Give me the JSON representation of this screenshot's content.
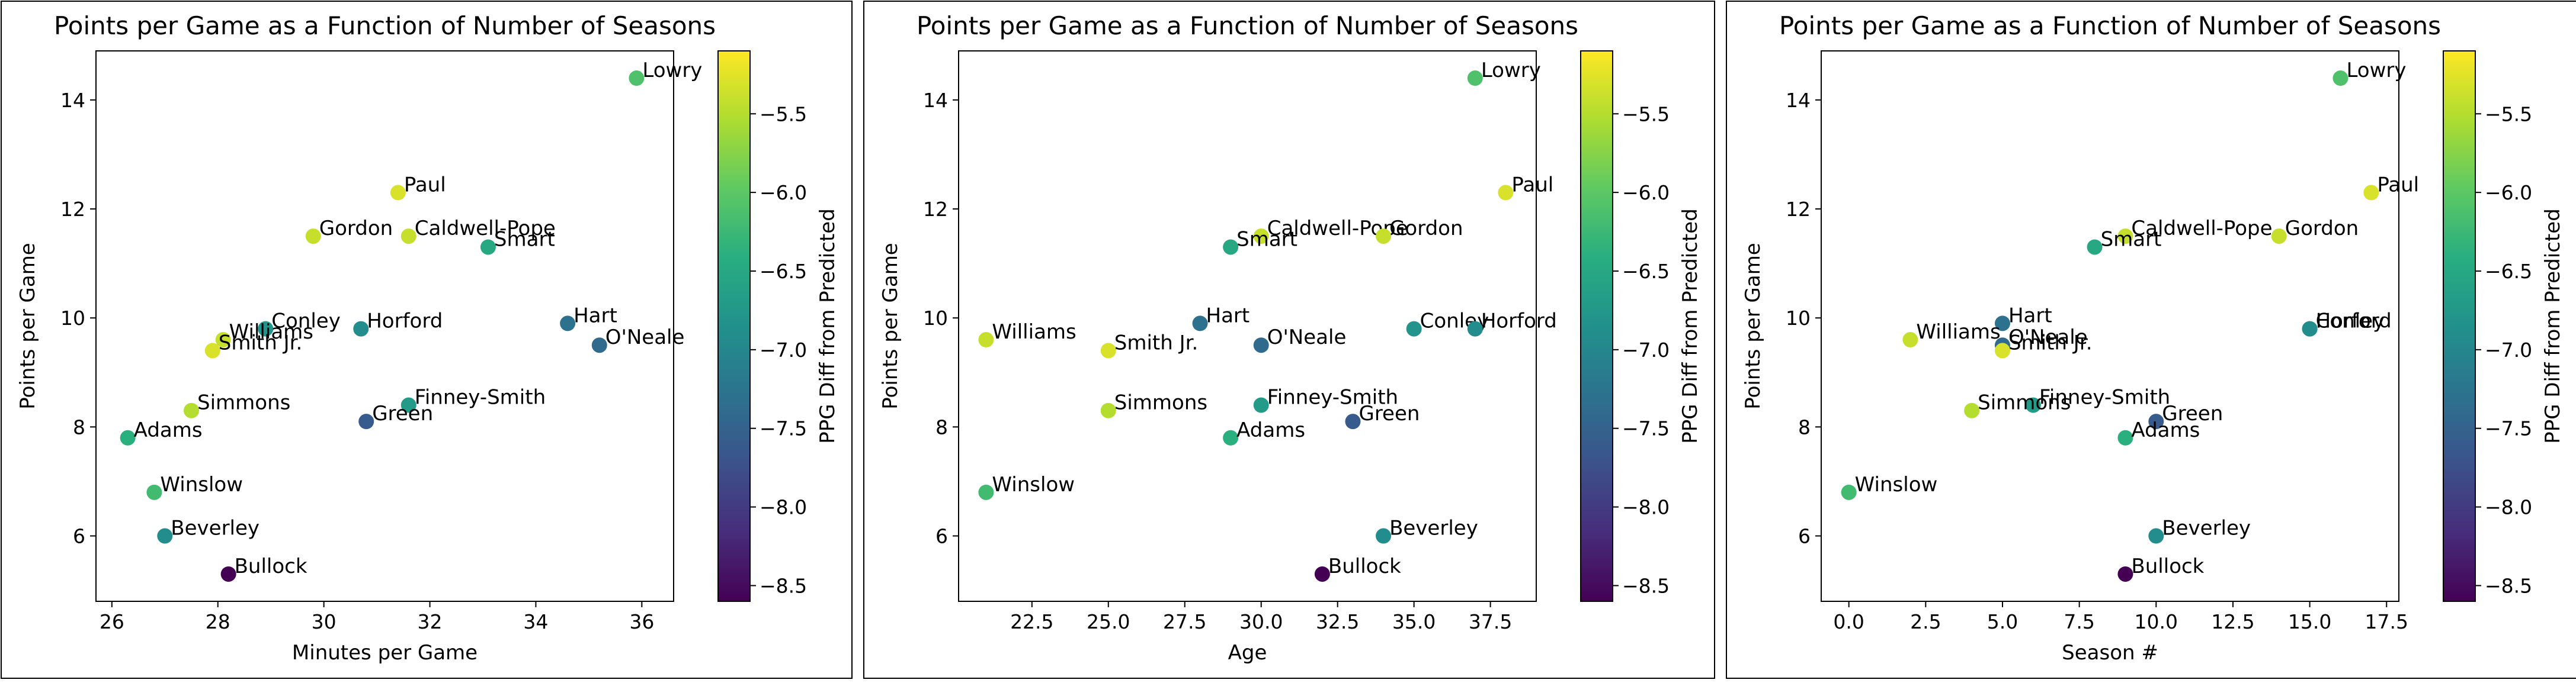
{
  "colorbar": {
    "label": "PPG Diff from Predicted",
    "range": [
      -8.6,
      -5.1
    ],
    "ticks": [
      -8.5,
      -8.0,
      -7.5,
      -7.0,
      -6.5,
      -6.0,
      -5.5
    ],
    "tick_labels": [
      "−8.5",
      "−8.0",
      "−7.5",
      "−7.0",
      "−6.5",
      "−6.0",
      "−5.5"
    ],
    "colormap": "viridis"
  },
  "chart_data": [
    {
      "type": "scatter",
      "title": "Points per Game as a Function of Number of Seasons",
      "xlabel": "Minutes per Game",
      "ylabel": "Points per Game",
      "xlim": [
        25.7,
        36.6
      ],
      "ylim": [
        4.8,
        14.9
      ],
      "xticks": [
        26,
        28,
        30,
        32,
        34,
        36
      ],
      "xtick_labels": [
        "26",
        "28",
        "30",
        "32",
        "34",
        "36"
      ],
      "yticks": [
        6,
        8,
        10,
        12,
        14
      ],
      "ytick_labels": [
        "6",
        "8",
        "10",
        "12",
        "14"
      ],
      "colorbar_label": "PPG Diff from Predicted",
      "points": [
        {
          "label": "Lowry",
          "x": 35.9,
          "y": 14.4,
          "c": -6.1
        },
        {
          "label": "Paul",
          "x": 31.4,
          "y": 12.3,
          "c": -5.3
        },
        {
          "label": "Gordon",
          "x": 29.8,
          "y": 11.5,
          "c": -5.4
        },
        {
          "label": "Caldwell-Pope",
          "x": 31.6,
          "y": 11.5,
          "c": -5.4
        },
        {
          "label": "Smart",
          "x": 33.1,
          "y": 11.3,
          "c": -6.5
        },
        {
          "label": "Hart",
          "x": 34.6,
          "y": 9.9,
          "c": -7.3
        },
        {
          "label": "O'Neale",
          "x": 35.2,
          "y": 9.5,
          "c": -7.4
        },
        {
          "label": "Conley",
          "x": 28.9,
          "y": 9.8,
          "c": -6.8
        },
        {
          "label": "Horford",
          "x": 30.7,
          "y": 9.8,
          "c": -6.9
        },
        {
          "label": "Williams",
          "x": 28.1,
          "y": 9.6,
          "c": -5.4
        },
        {
          "label": "Smith Jr.",
          "x": 27.9,
          "y": 9.4,
          "c": -5.3
        },
        {
          "label": "Simmons",
          "x": 27.5,
          "y": 8.3,
          "c": -5.5
        },
        {
          "label": "Finney-Smith",
          "x": 31.6,
          "y": 8.4,
          "c": -6.7
        },
        {
          "label": "Green",
          "x": 30.8,
          "y": 8.1,
          "c": -7.6
        },
        {
          "label": "Adams",
          "x": 26.3,
          "y": 7.8,
          "c": -6.4
        },
        {
          "label": "Winslow",
          "x": 26.8,
          "y": 6.8,
          "c": -6.2
        },
        {
          "label": "Beverley",
          "x": 27.0,
          "y": 6.0,
          "c": -6.9
        },
        {
          "label": "Bullock",
          "x": 28.2,
          "y": 5.3,
          "c": -8.6
        }
      ]
    },
    {
      "type": "scatter",
      "title": "Points per Game as a Function of Number of Seasons",
      "xlabel": "Age",
      "ylabel": "Points per Game",
      "xlim": [
        20.1,
        39.0
      ],
      "ylim": [
        4.8,
        14.9
      ],
      "xticks": [
        22.5,
        25.0,
        27.5,
        30.0,
        32.5,
        35.0,
        37.5
      ],
      "xtick_labels": [
        "22.5",
        "25.0",
        "27.5",
        "30.0",
        "32.5",
        "35.0",
        "37.5"
      ],
      "yticks": [
        6,
        8,
        10,
        12,
        14
      ],
      "ytick_labels": [
        "6",
        "8",
        "10",
        "12",
        "14"
      ],
      "colorbar_label": "PPG Diff from Predicted",
      "points": [
        {
          "label": "Lowry",
          "x": 37,
          "y": 14.4,
          "c": -6.1
        },
        {
          "label": "Paul",
          "x": 38,
          "y": 12.3,
          "c": -5.3
        },
        {
          "label": "Caldwell-Pope",
          "x": 30,
          "y": 11.5,
          "c": -5.4
        },
        {
          "label": "Gordon",
          "x": 34,
          "y": 11.5,
          "c": -5.4
        },
        {
          "label": "Smart",
          "x": 29,
          "y": 11.3,
          "c": -6.5
        },
        {
          "label": "Hart",
          "x": 28,
          "y": 9.9,
          "c": -7.3
        },
        {
          "label": "Conley",
          "x": 35,
          "y": 9.8,
          "c": -6.8
        },
        {
          "label": "Horford",
          "x": 37,
          "y": 9.8,
          "c": -6.9
        },
        {
          "label": "Williams",
          "x": 21,
          "y": 9.6,
          "c": -5.4
        },
        {
          "label": "O'Neale",
          "x": 30,
          "y": 9.5,
          "c": -7.4
        },
        {
          "label": "Smith Jr.",
          "x": 25,
          "y": 9.4,
          "c": -5.3
        },
        {
          "label": "Finney-Smith",
          "x": 30,
          "y": 8.4,
          "c": -6.7
        },
        {
          "label": "Simmons",
          "x": 25,
          "y": 8.3,
          "c": -5.5
        },
        {
          "label": "Green",
          "x": 33,
          "y": 8.1,
          "c": -7.6
        },
        {
          "label": "Adams",
          "x": 29,
          "y": 7.8,
          "c": -6.4
        },
        {
          "label": "Winslow",
          "x": 21,
          "y": 6.8,
          "c": -6.2
        },
        {
          "label": "Beverley",
          "x": 34,
          "y": 6.0,
          "c": -6.9
        },
        {
          "label": "Bullock",
          "x": 32,
          "y": 5.3,
          "c": -8.6
        }
      ]
    },
    {
      "type": "scatter",
      "title": "Points per Game as a Function of Number of Seasons",
      "xlabel": "Season #",
      "ylabel": "Points per Game",
      "xlim": [
        -0.9,
        17.9
      ],
      "ylim": [
        4.8,
        14.9
      ],
      "xticks": [
        0.0,
        2.5,
        5.0,
        7.5,
        10.0,
        12.5,
        15.0,
        17.5
      ],
      "xtick_labels": [
        "0.0",
        "2.5",
        "5.0",
        "7.5",
        "10.0",
        "12.5",
        "15.0",
        "17.5"
      ],
      "yticks": [
        6,
        8,
        10,
        12,
        14
      ],
      "ytick_labels": [
        "6",
        "8",
        "10",
        "12",
        "14"
      ],
      "colorbar_label": "PPG Diff from Predicted",
      "points": [
        {
          "label": "Lowry",
          "x": 16,
          "y": 14.4,
          "c": -6.1
        },
        {
          "label": "Paul",
          "x": 17,
          "y": 12.3,
          "c": -5.3
        },
        {
          "label": "Caldwell-Pope",
          "x": 9,
          "y": 11.5,
          "c": -5.4
        },
        {
          "label": "Gordon",
          "x": 14,
          "y": 11.5,
          "c": -5.4
        },
        {
          "label": "Smart",
          "x": 8,
          "y": 11.3,
          "c": -6.5
        },
        {
          "label": "Hart",
          "x": 5,
          "y": 9.9,
          "c": -7.3
        },
        {
          "label": "Conley",
          "x": 15,
          "y": 9.8,
          "c": -6.8
        },
        {
          "label": "Horford",
          "x": 15,
          "y": 9.8,
          "c": -6.9
        },
        {
          "label": "Williams",
          "x": 2,
          "y": 9.6,
          "c": -5.4
        },
        {
          "label": "O'Neale",
          "x": 5,
          "y": 9.5,
          "c": -7.4
        },
        {
          "label": "Smith Jr.",
          "x": 5,
          "y": 9.4,
          "c": -5.3
        },
        {
          "label": "Finney-Smith",
          "x": 6,
          "y": 8.4,
          "c": -6.7
        },
        {
          "label": "Simmons",
          "x": 4,
          "y": 8.3,
          "c": -5.5
        },
        {
          "label": "Green",
          "x": 10,
          "y": 8.1,
          "c": -7.6
        },
        {
          "label": "Adams",
          "x": 9,
          "y": 7.8,
          "c": -6.4
        },
        {
          "label": "Winslow",
          "x": 0,
          "y": 6.8,
          "c": -6.2
        },
        {
          "label": "Beverley",
          "x": 10,
          "y": 6.0,
          "c": -6.9
        },
        {
          "label": "Bullock",
          "x": 9,
          "y": 5.3,
          "c": -8.6
        }
      ]
    }
  ]
}
